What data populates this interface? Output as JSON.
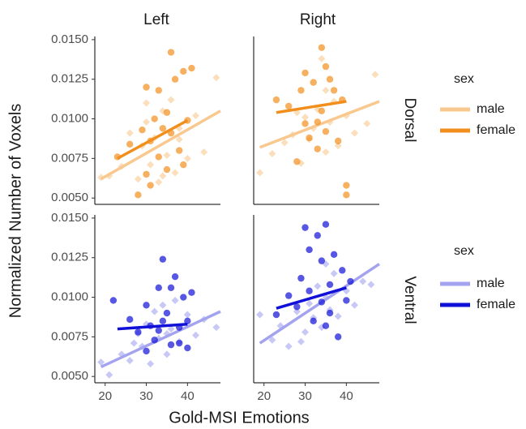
{
  "chart_data": {
    "type": "scatter",
    "x_label": "Gold-MSI Emotions",
    "y_label": "Normalized Number of Voxels",
    "columns": [
      "Left",
      "Right"
    ],
    "rows": [
      "Dorsal",
      "Ventral"
    ],
    "legend_title": "sex",
    "series_names": [
      "male",
      "female"
    ],
    "xlim": [
      17.5,
      48
    ],
    "xticks": [
      20,
      30,
      40
    ],
    "ylim": [
      0.0046,
      0.0152
    ],
    "yticks": [
      {
        "value": 0.005,
        "label": "0.0050"
      },
      0.0075,
      {
        "value": 0.01,
        "label": "0.0100"
      },
      0.0125,
      {
        "value": 0.015,
        "label": "0.0150"
      }
    ],
    "panels": [
      {
        "series": [
          {
            "color": "#f8c88e",
            "marker": "diamond",
            "x": [
              19,
              21,
              24,
              26,
              28,
              29,
              30,
              31,
              32,
              33,
              34,
              35,
              36,
              37,
              38,
              40,
              42,
              44,
              47,
              30,
              34,
              38
            ],
            "values": [
              0.0063,
              0.0064,
              0.007,
              0.0091,
              0.0062,
              0.0083,
              0.0098,
              0.0071,
              0.0088,
              0.006,
              0.0105,
              0.0077,
              0.0112,
              0.0066,
              0.0094,
              0.0075,
              0.0102,
              0.0079,
              0.0126,
              0.011,
              0.0064,
              0.0087
            ],
            "fit_x": [
              19,
              48
            ],
            "fit_values": [
              0.0062,
              0.0105
            ]
          },
          {
            "color": "#f28e1c",
            "marker": "circle",
            "x": [
              23,
              26,
              28,
              29,
              30,
              30,
              31,
              32,
              33,
              33,
              34,
              35,
              35,
              36,
              37,
              38,
              39,
              39,
              40,
              41,
              31,
              36
            ],
            "values": [
              0.0076,
              0.0084,
              0.0052,
              0.0093,
              0.012,
              0.0065,
              0.0086,
              0.01,
              0.0118,
              0.0076,
              0.0094,
              0.0104,
              0.0068,
              0.0091,
              0.0125,
              0.008,
              0.013,
              0.0071,
              0.0099,
              0.0132,
              0.0058,
              0.0142
            ],
            "fit_x": [
              23,
              40
            ],
            "fit_values": [
              0.0075,
              0.0099
            ]
          }
        ]
      },
      {
        "series": [
          {
            "color": "#f8c88e",
            "marker": "diamond",
            "x": [
              19,
              22,
              25,
              27,
              29,
              30,
              31,
              32,
              33,
              34,
              35,
              36,
              37,
              38,
              40,
              42,
              45,
              47,
              28,
              35
            ],
            "values": [
              0.0066,
              0.0078,
              0.0085,
              0.009,
              0.0072,
              0.0101,
              0.0087,
              0.0094,
              0.0106,
              0.0138,
              0.0079,
              0.0098,
              0.0111,
              0.0083,
              0.0102,
              0.0091,
              0.0097,
              0.0128,
              0.0104,
              0.0118
            ],
            "fit_x": [
              19,
              48
            ],
            "fit_values": [
              0.0082,
              0.0111
            ]
          },
          {
            "color": "#f28e1c",
            "marker": "circle",
            "x": [
              23,
              26,
              28,
              29,
              30,
              31,
              32,
              33,
              34,
              34,
              35,
              35,
              36,
              37,
              38,
              39,
              40,
              40,
              30,
              33
            ],
            "values": [
              0.0112,
              0.0108,
              0.0073,
              0.0118,
              0.0097,
              0.0088,
              0.0123,
              0.0081,
              0.0145,
              0.0105,
              0.0133,
              0.0092,
              0.0125,
              0.0118,
              0.0086,
              0.0112,
              0.0058,
              0.0052,
              0.0129,
              0.0098
            ],
            "fit_x": [
              23,
              40
            ],
            "fit_values": [
              0.0104,
              0.0111
            ]
          }
        ]
      },
      {
        "series": [
          {
            "color": "#a3a3f0",
            "marker": "diamond",
            "x": [
              19,
              21,
              24,
              26,
              28,
              29,
              30,
              31,
              32,
              33,
              34,
              35,
              36,
              37,
              38,
              40,
              42,
              44,
              47,
              27,
              35
            ],
            "values": [
              0.0059,
              0.0051,
              0.0064,
              0.006,
              0.0077,
              0.0069,
              0.0083,
              0.0058,
              0.0091,
              0.0074,
              0.0095,
              0.0064,
              0.008,
              0.0098,
              0.0072,
              0.0089,
              0.0076,
              0.0086,
              0.0081,
              0.0071,
              0.0077
            ],
            "fit_x": [
              19,
              48
            ],
            "fit_values": [
              0.0056,
              0.0091
            ]
          },
          {
            "color": "#1010d8",
            "marker": "circle",
            "x": [
              22,
              26,
              28,
              30,
              31,
              32,
              33,
              34,
              34,
              35,
              36,
              36,
              37,
              38,
              39,
              40,
              40,
              41,
              30,
              33,
              38
            ],
            "values": [
              0.0098,
              0.0086,
              0.0078,
              0.0095,
              0.0082,
              0.0073,
              0.0106,
              0.0124,
              0.0085,
              0.009,
              0.0106,
              0.007,
              0.0113,
              0.0081,
              0.01,
              0.0068,
              0.0085,
              0.0103,
              0.0066,
              0.0079,
              0.0071
            ],
            "fit_x": [
              23,
              40
            ],
            "fit_values": [
              0.008,
              0.0083
            ]
          }
        ]
      },
      {
        "series": [
          {
            "color": "#a3a3f0",
            "marker": "diamond",
            "x": [
              19,
              22,
              24,
              26,
              28,
              30,
              31,
              32,
              33,
              34,
              35,
              36,
              37,
              38,
              40,
              42,
              44,
              46,
              29,
              35
            ],
            "values": [
              0.0089,
              0.0073,
              0.0082,
              0.0069,
              0.0091,
              0.0078,
              0.0096,
              0.0087,
              0.0107,
              0.0081,
              0.01,
              0.0092,
              0.0115,
              0.0088,
              0.0104,
              0.0095,
              0.011,
              0.0108,
              0.0072,
              0.0121
            ],
            "fit_x": [
              19,
              48
            ],
            "fit_values": [
              0.0071,
              0.0121
            ]
          },
          {
            "color": "#1010d8",
            "marker": "circle",
            "x": [
              23,
              26,
              28,
              29,
              30,
              31,
              32,
              33,
              34,
              34,
              35,
              35,
              36,
              37,
              38,
              39,
              40,
              41,
              31,
              36
            ],
            "values": [
              0.0089,
              0.0101,
              0.0094,
              0.0112,
              0.0144,
              0.0104,
              0.0085,
              0.0139,
              0.0097,
              0.0123,
              0.0146,
              0.0082,
              0.0108,
              0.0127,
              0.0075,
              0.0117,
              0.0098,
              0.011,
              0.013,
              0.009
            ],
            "fit_x": [
              23,
              40
            ],
            "fit_values": [
              0.0093,
              0.0106
            ]
          }
        ]
      }
    ]
  }
}
